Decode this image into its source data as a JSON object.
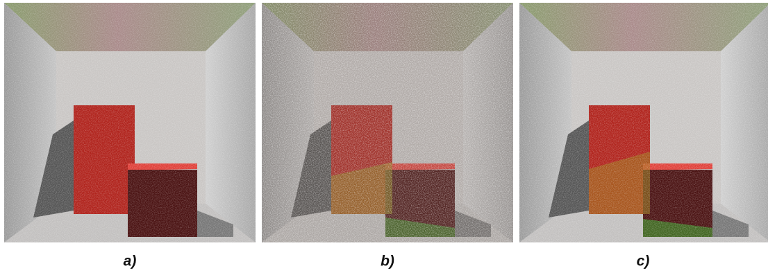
{
  "captions": [
    "a)",
    "b)",
    "c)"
  ]
}
